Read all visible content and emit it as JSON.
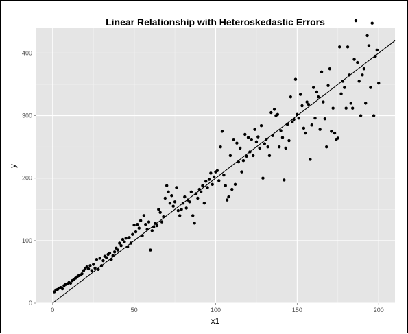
{
  "chart_data": {
    "type": "scatter",
    "title": "Linear Relationship with Heteroskedastic Errors",
    "xlabel": "x1",
    "ylabel": "y",
    "xlim": [
      -10,
      210
    ],
    "ylim": [
      0,
      440
    ],
    "x_ticks": [
      0,
      50,
      100,
      150,
      200
    ],
    "y_ticks": [
      0,
      100,
      200,
      300,
      400
    ],
    "grid": true,
    "legend": "none",
    "panel_background": "#e5e5e5",
    "point_color": "#000000",
    "fit_line": {
      "intercept": 0,
      "slope": 2
    },
    "points": [
      [
        1,
        18
      ],
      [
        2,
        21
      ],
      [
        3,
        22
      ],
      [
        4,
        24
      ],
      [
        5,
        25
      ],
      [
        6,
        23
      ],
      [
        7,
        28
      ],
      [
        8,
        30
      ],
      [
        9,
        31
      ],
      [
        10,
        33
      ],
      [
        11,
        32
      ],
      [
        12,
        36
      ],
      [
        13,
        38
      ],
      [
        14,
        40
      ],
      [
        15,
        42
      ],
      [
        16,
        44
      ],
      [
        17,
        45
      ],
      [
        18,
        47
      ],
      [
        19,
        52
      ],
      [
        20,
        55
      ],
      [
        21,
        58
      ],
      [
        22,
        55
      ],
      [
        23,
        60
      ],
      [
        24,
        52
      ],
      [
        25,
        62
      ],
      [
        26,
        56
      ],
      [
        27,
        70
      ],
      [
        28,
        54
      ],
      [
        29,
        72
      ],
      [
        30,
        60
      ],
      [
        31,
        68
      ],
      [
        32,
        75
      ],
      [
        33,
        73
      ],
      [
        34,
        78
      ],
      [
        35,
        80
      ],
      [
        36,
        70
      ],
      [
        37,
        76
      ],
      [
        38,
        82
      ],
      [
        39,
        88
      ],
      [
        40,
        85
      ],
      [
        41,
        96
      ],
      [
        42,
        92
      ],
      [
        43,
        102
      ],
      [
        44,
        98
      ],
      [
        45,
        104
      ],
      [
        46,
        90
      ],
      [
        47,
        105
      ],
      [
        48,
        96
      ],
      [
        49,
        110
      ],
      [
        50,
        125
      ],
      [
        51,
        114
      ],
      [
        52,
        126
      ],
      [
        53,
        120
      ],
      [
        54,
        132
      ],
      [
        55,
        108
      ],
      [
        56,
        140
      ],
      [
        57,
        126
      ],
      [
        58,
        118
      ],
      [
        59,
        130
      ],
      [
        60,
        85
      ],
      [
        61,
        116
      ],
      [
        62,
        122
      ],
      [
        63,
        128
      ],
      [
        64,
        124
      ],
      [
        65,
        150
      ],
      [
        66,
        145
      ],
      [
        67,
        130
      ],
      [
        68,
        138
      ],
      [
        69,
        168
      ],
      [
        70,
        188
      ],
      [
        71,
        178
      ],
      [
        72,
        160
      ],
      [
        73,
        172
      ],
      [
        74,
        155
      ],
      [
        75,
        162
      ],
      [
        76,
        185
      ],
      [
        77,
        148
      ],
      [
        78,
        140
      ],
      [
        79,
        150
      ],
      [
        80,
        160
      ],
      [
        81,
        170
      ],
      [
        82,
        152
      ],
      [
        83,
        165
      ],
      [
        84,
        162
      ],
      [
        85,
        178
      ],
      [
        86,
        140
      ],
      [
        87,
        128
      ],
      [
        88,
        175
      ],
      [
        89,
        168
      ],
      [
        90,
        182
      ],
      [
        91,
        178
      ],
      [
        92,
        188
      ],
      [
        93,
        160
      ],
      [
        94,
        195
      ],
      [
        95,
        185
      ],
      [
        96,
        198
      ],
      [
        97,
        208
      ],
      [
        98,
        190
      ],
      [
        99,
        202
      ],
      [
        100,
        210
      ],
      [
        101,
        212
      ],
      [
        102,
        196
      ],
      [
        103,
        250
      ],
      [
        104,
        275
      ],
      [
        105,
        205
      ],
      [
        106,
        188
      ],
      [
        107,
        165
      ],
      [
        108,
        170
      ],
      [
        109,
        236
      ],
      [
        110,
        182
      ],
      [
        111,
        262
      ],
      [
        112,
        190
      ],
      [
        113,
        256
      ],
      [
        114,
        226
      ],
      [
        115,
        248
      ],
      [
        116,
        210
      ],
      [
        117,
        228
      ],
      [
        118,
        270
      ],
      [
        119,
        235
      ],
      [
        120,
        265
      ],
      [
        121,
        242
      ],
      [
        122,
        262
      ],
      [
        123,
        236
      ],
      [
        124,
        278
      ],
      [
        125,
        258
      ],
      [
        126,
        266
      ],
      [
        127,
        248
      ],
      [
        128,
        284
      ],
      [
        129,
        200
      ],
      [
        130,
        255
      ],
      [
        131,
        262
      ],
      [
        132,
        250
      ],
      [
        133,
        236
      ],
      [
        134,
        305
      ],
      [
        135,
        268
      ],
      [
        136,
        310
      ],
      [
        137,
        300
      ],
      [
        138,
        302
      ],
      [
        139,
        250
      ],
      [
        140,
        276
      ],
      [
        141,
        265
      ],
      [
        142,
        197
      ],
      [
        143,
        248
      ],
      [
        144,
        286
      ],
      [
        145,
        260
      ],
      [
        146,
        330
      ],
      [
        147,
        290
      ],
      [
        148,
        294
      ],
      [
        149,
        358
      ],
      [
        150,
        302
      ],
      [
        151,
        296
      ],
      [
        152,
        334
      ],
      [
        153,
        316
      ],
      [
        154,
        280
      ],
      [
        155,
        272
      ],
      [
        156,
        322
      ],
      [
        157,
        318
      ],
      [
        158,
        230
      ],
      [
        159,
        285
      ],
      [
        160,
        345
      ],
      [
        161,
        296
      ],
      [
        162,
        338
      ],
      [
        163,
        330
      ],
      [
        164,
        278
      ],
      [
        165,
        370
      ],
      [
        166,
        322
      ],
      [
        167,
        295
      ],
      [
        168,
        250
      ],
      [
        169,
        348
      ],
      [
        170,
        375
      ],
      [
        171,
        275
      ],
      [
        172,
        312
      ],
      [
        173,
        272
      ],
      [
        174,
        262
      ],
      [
        175,
        264
      ],
      [
        176,
        410
      ],
      [
        177,
        335
      ],
      [
        178,
        355
      ],
      [
        179,
        345
      ],
      [
        180,
        312
      ],
      [
        181,
        410
      ],
      [
        182,
        365
      ],
      [
        183,
        320
      ],
      [
        184,
        312
      ],
      [
        185,
        390
      ],
      [
        186,
        452
      ],
      [
        187,
        385
      ],
      [
        188,
        355
      ],
      [
        189,
        300
      ],
      [
        190,
        365
      ],
      [
        191,
        375
      ],
      [
        192,
        320
      ],
      [
        193,
        428
      ],
      [
        194,
        412
      ],
      [
        195,
        345
      ],
      [
        196,
        448
      ],
      [
        197,
        300
      ],
      [
        198,
        395
      ],
      [
        199,
        405
      ],
      [
        200,
        352
      ]
    ]
  }
}
